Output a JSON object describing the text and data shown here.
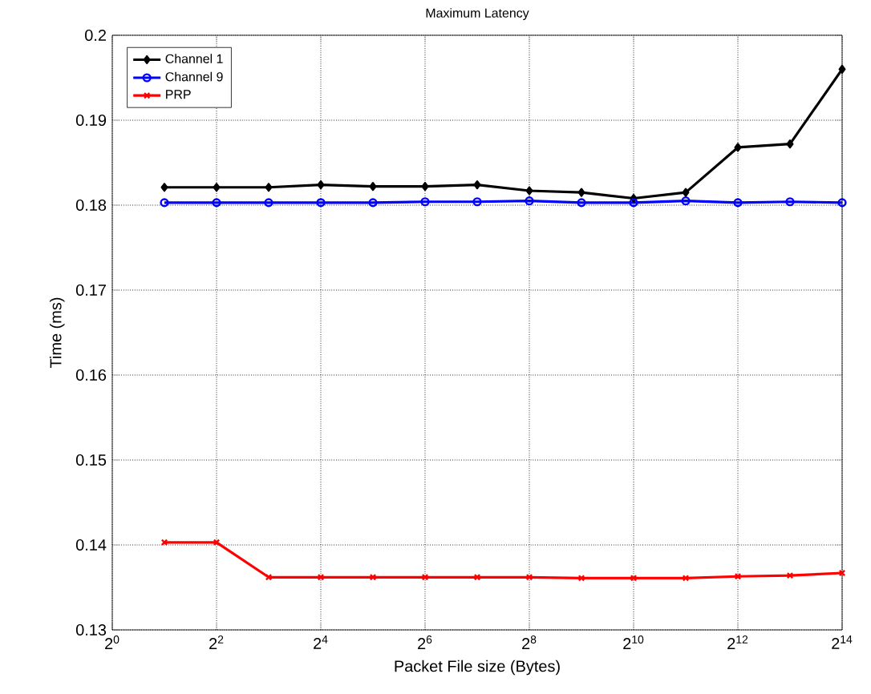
{
  "chart_data": {
    "type": "line",
    "title": "Maximum Latency",
    "xlabel": "Packet File size (Bytes)",
    "ylabel": "Time (ms)",
    "x": [
      2,
      4,
      8,
      16,
      32,
      64,
      128,
      256,
      512,
      1024,
      2048,
      4096,
      8192,
      16384
    ],
    "series": [
      {
        "name": "Channel 1",
        "color": "#000000",
        "marker": "diamond",
        "values": [
          0.1821,
          0.1821,
          0.1821,
          0.1824,
          0.1822,
          0.1822,
          0.1824,
          0.1817,
          0.1815,
          0.1808,
          0.1815,
          0.1868,
          0.1872,
          0.196
        ]
      },
      {
        "name": "Channel 9",
        "color": "#0000ff",
        "marker": "circle",
        "values": [
          0.1803,
          0.1803,
          0.1803,
          0.1803,
          0.1803,
          0.1804,
          0.1804,
          0.1805,
          0.1803,
          0.1803,
          0.1805,
          0.1803,
          0.1804,
          0.1803
        ]
      },
      {
        "name": "PRP",
        "color": "#ff0000",
        "marker": "cross",
        "values": [
          0.1403,
          0.1403,
          0.1362,
          0.1362,
          0.1362,
          0.1362,
          0.1362,
          0.1362,
          0.1361,
          0.1361,
          0.1361,
          0.1363,
          0.1364,
          0.1367
        ]
      }
    ],
    "log": "x",
    "xlim": [
      1,
      16384
    ],
    "ylim": [
      0.13,
      0.2
    ],
    "xticks": [
      {
        "value": 1,
        "label": "2$^{0}$"
      },
      {
        "value": 4,
        "label": "2$^{2}$"
      },
      {
        "value": 16,
        "label": "2$^{4}$"
      },
      {
        "value": 64,
        "label": "2$^{6}$"
      },
      {
        "value": 256,
        "label": "2$^{8}$"
      },
      {
        "value": 1024,
        "label": "2$^{10}$"
      },
      {
        "value": 4096,
        "label": "2$^{12}$"
      },
      {
        "value": 16384,
        "label": "2$^{14}$"
      }
    ],
    "yticks": [
      0.13,
      0.14,
      0.15,
      0.16,
      0.17,
      0.18,
      0.19,
      0.2
    ],
    "grid": true,
    "legend": "top left",
    "line_style": "solid"
  }
}
